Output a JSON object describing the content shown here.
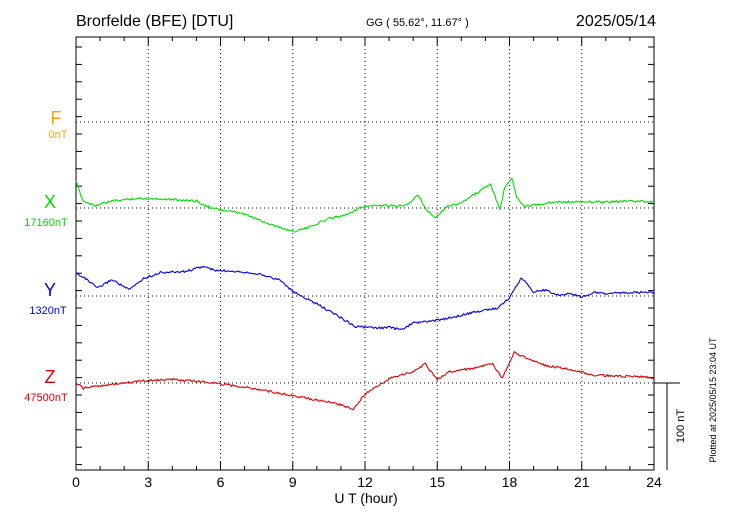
{
  "header": {
    "station": "Brorfelde (BFE)  [DTU]",
    "coords": "GG ( 55.62°,  11.67° )",
    "date": "2025/05/14"
  },
  "side_note": "Plotted at 2025/05/15 23:04 UT",
  "colors": {
    "F": "#ffa500",
    "X": "#00dd00",
    "Y": "#0000dd",
    "Z": "#dd0000",
    "grid": "#000000"
  },
  "chart_data": {
    "type": "line",
    "xlabel": "U T (hour)",
    "xlim": [
      0,
      24
    ],
    "x_ticks": [
      "0",
      "3",
      "6",
      "9",
      "12",
      "15",
      "18",
      "21",
      "24"
    ],
    "scale_bar": "100 nT",
    "series": [
      {
        "name": "F",
        "baseline_label": "0nT",
        "x": [],
        "y": []
      },
      {
        "name": "X",
        "baseline_label": "17160nT",
        "x": [
          0,
          0.3,
          0.8,
          1.5,
          2.5,
          3.0,
          4.0,
          5.0,
          5.6,
          6.0,
          7.0,
          8.0,
          9.0,
          9.6,
          10.5,
          11.2,
          11.6,
          12.0,
          12.6,
          13.3,
          13.8,
          14.2,
          14.5,
          14.9,
          15.4,
          16.0,
          16.8,
          17.2,
          17.6,
          17.8,
          18.1,
          18.3,
          18.6,
          19.0,
          19.5,
          20.0,
          21.0,
          22.0,
          23.0,
          24.0
        ],
        "y": [
          17190,
          17168,
          17163,
          17168,
          17171,
          17171,
          17170,
          17168,
          17160,
          17158,
          17153,
          17142,
          17133,
          17137,
          17148,
          17152,
          17158,
          17162,
          17163,
          17162,
          17165,
          17175,
          17160,
          17149,
          17162,
          17166,
          17180,
          17188,
          17158,
          17183,
          17195,
          17173,
          17162,
          17163,
          17165,
          17167,
          17167,
          17167,
          17168,
          17167
        ]
      },
      {
        "name": "Y",
        "baseline_label": "1320nT",
        "x": [
          0,
          0.3,
          0.9,
          1.5,
          2.2,
          2.8,
          3.5,
          4.5,
          5.3,
          5.8,
          6.5,
          7.5,
          8.5,
          9.0,
          10.0,
          11.0,
          11.6,
          12.5,
          13.0,
          13.5,
          14.0,
          15.0,
          16.0,
          17.0,
          17.5,
          18.0,
          18.5,
          19.0,
          19.5,
          20.0,
          20.5,
          21.0,
          21.5,
          22.0,
          23.0,
          24.0
        ],
        "y": [
          1346,
          1342,
          1329,
          1339,
          1327,
          1340,
          1347,
          1348,
          1354,
          1349,
          1349,
          1346,
          1338,
          1325,
          1311,
          1295,
          1285,
          1283,
          1284,
          1281,
          1289,
          1292,
          1298,
          1304,
          1306,
          1318,
          1341,
          1325,
          1327,
          1321,
          1323,
          1319,
          1324,
          1323,
          1324,
          1324
        ]
      },
      {
        "name": "Z",
        "baseline_label": "47500nT",
        "x": [
          0,
          0.3,
          1.0,
          2.0,
          3.0,
          4.0,
          5.5,
          6.5,
          7.5,
          8.5,
          9.5,
          10.5,
          11.0,
          11.5,
          12.0,
          13.0,
          14.0,
          14.5,
          15.0,
          15.5,
          16.5,
          17.3,
          17.7,
          18.2,
          18.6,
          19.5,
          20.5,
          21.5,
          22.5,
          23.5,
          24.0
        ],
        "y": [
          47500,
          47494,
          47497,
          47500,
          47503,
          47504,
          47501,
          47497,
          47493,
          47488,
          47483,
          47478,
          47475,
          47470,
          47487,
          47505,
          47513,
          47522,
          47504,
          47513,
          47517,
          47522,
          47505,
          47535,
          47530,
          47520,
          47516,
          47509,
          47508,
          47507,
          47506
        ]
      }
    ]
  }
}
